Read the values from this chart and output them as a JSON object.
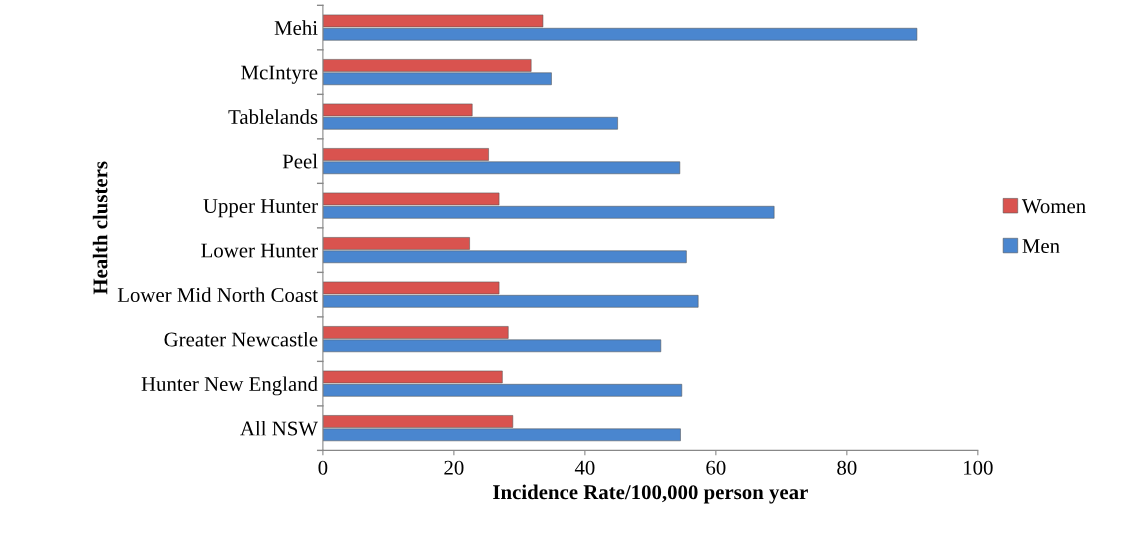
{
  "chart_data": {
    "type": "bar",
    "orientation": "horizontal",
    "xlabel": "Incidence Rate/100,000 person year",
    "ylabel": "Health clusters",
    "categories": [
      "Mehi",
      "McIntyre",
      "Tablelands",
      "Peel",
      "Upper Hunter",
      "Lower Hunter",
      "Lower Mid North Coast",
      "Greater Newcastle",
      "Hunter New England",
      "All NSW"
    ],
    "series": [
      {
        "name": "Women",
        "color": "#d9534f",
        "values": [
          33.6,
          31.8,
          22.8,
          25.3,
          26.9,
          22.4,
          26.9,
          28.3,
          27.4,
          29.0
        ]
      },
      {
        "name": "Men",
        "color": "#4a86cf",
        "values": [
          90.7,
          34.9,
          45.0,
          54.5,
          68.9,
          55.5,
          57.3,
          51.6,
          54.8,
          54.6
        ]
      }
    ],
    "xlim": [
      0,
      100
    ],
    "xticks": [
      0,
      20,
      40,
      60,
      80,
      100
    ],
    "grid": false,
    "legend": "right"
  }
}
